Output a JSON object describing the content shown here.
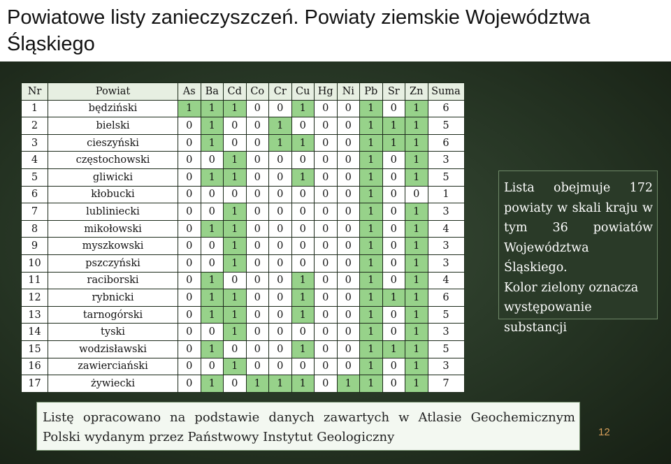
{
  "title": "Powiatowe listy zanieczyszczeń. Powiaty ziemskie Województwa Śląskiego",
  "table": {
    "headers": [
      "Nr",
      "Powiat",
      "As",
      "Ba",
      "Cd",
      "Co",
      "Cr",
      "Cu",
      "Hg",
      "Ni",
      "Pb",
      "Sr",
      "Zn",
      "Suma"
    ],
    "rows": [
      {
        "nr": "1",
        "name": "będziński",
        "values": [
          1,
          1,
          1,
          0,
          0,
          1,
          0,
          0,
          1,
          0,
          1
        ],
        "sum": "6"
      },
      {
        "nr": "2",
        "name": "bielski",
        "values": [
          0,
          1,
          0,
          0,
          1,
          0,
          0,
          0,
          1,
          1,
          1
        ],
        "sum": "5"
      },
      {
        "nr": "3",
        "name": "cieszyński",
        "values": [
          0,
          1,
          0,
          0,
          1,
          1,
          0,
          0,
          1,
          1,
          1
        ],
        "sum": "6"
      },
      {
        "nr": "4",
        "name": "częstochowski",
        "values": [
          0,
          0,
          1,
          0,
          0,
          0,
          0,
          0,
          1,
          0,
          1
        ],
        "sum": "3"
      },
      {
        "nr": "5",
        "name": "gliwicki",
        "values": [
          0,
          1,
          1,
          0,
          0,
          1,
          0,
          0,
          1,
          0,
          1
        ],
        "sum": "5"
      },
      {
        "nr": "6",
        "name": "kłobucki",
        "values": [
          0,
          0,
          0,
          0,
          0,
          0,
          0,
          0,
          1,
          0,
          0
        ],
        "sum": "1"
      },
      {
        "nr": "7",
        "name": "lubliniecki",
        "values": [
          0,
          0,
          1,
          0,
          0,
          0,
          0,
          0,
          1,
          0,
          1
        ],
        "sum": "3"
      },
      {
        "nr": "8",
        "name": "mikołowski",
        "values": [
          0,
          1,
          1,
          0,
          0,
          0,
          0,
          0,
          1,
          0,
          1
        ],
        "sum": "4"
      },
      {
        "nr": "9",
        "name": "myszkowski",
        "values": [
          0,
          0,
          1,
          0,
          0,
          0,
          0,
          0,
          1,
          0,
          1
        ],
        "sum": "3"
      },
      {
        "nr": "10",
        "name": "pszczyński",
        "values": [
          0,
          0,
          1,
          0,
          0,
          0,
          0,
          0,
          1,
          0,
          1
        ],
        "sum": "3"
      },
      {
        "nr": "11",
        "name": "raciborski",
        "values": [
          0,
          1,
          0,
          0,
          0,
          1,
          0,
          0,
          1,
          0,
          1
        ],
        "sum": "4"
      },
      {
        "nr": "12",
        "name": "rybnicki",
        "values": [
          0,
          1,
          1,
          0,
          0,
          1,
          0,
          0,
          1,
          1,
          1
        ],
        "sum": "6"
      },
      {
        "nr": "13",
        "name": "tarnogórski",
        "values": [
          0,
          1,
          1,
          0,
          0,
          1,
          0,
          0,
          1,
          0,
          1
        ],
        "sum": "5"
      },
      {
        "nr": "14",
        "name": "tyski",
        "values": [
          0,
          0,
          1,
          0,
          0,
          0,
          0,
          0,
          1,
          0,
          1
        ],
        "sum": "3"
      },
      {
        "nr": "15",
        "name": "wodzisławski",
        "values": [
          0,
          1,
          0,
          0,
          0,
          1,
          0,
          0,
          1,
          1,
          1
        ],
        "sum": "5"
      },
      {
        "nr": "16",
        "name": "zawierciański",
        "values": [
          0,
          0,
          1,
          0,
          0,
          0,
          0,
          0,
          1,
          0,
          1
        ],
        "sum": "3"
      },
      {
        "nr": "17",
        "name": "żywiecki",
        "values": [
          0,
          1,
          0,
          1,
          1,
          1,
          0,
          1,
          1,
          0,
          1
        ],
        "sum": "7"
      }
    ]
  },
  "info_box": {
    "line1": "Lista obejmuje 172 powiaty w skali kraju w tym 36 powiatów",
    "line2": "Województwa Śląskiego.",
    "line3": "Kolor zielony oznacza występowanie substancji"
  },
  "footer": {
    "text": "Listę opracowano na podstawie danych zawartych w Atlasie Geochemicznym Polski wydanym przez Państwowy Instytut Geologiczny"
  },
  "page_number": "12",
  "colors": {
    "present_green": "#97d28a",
    "absent_white": "#ffffff",
    "background": "#263524",
    "page_number": "#d8a05a"
  }
}
